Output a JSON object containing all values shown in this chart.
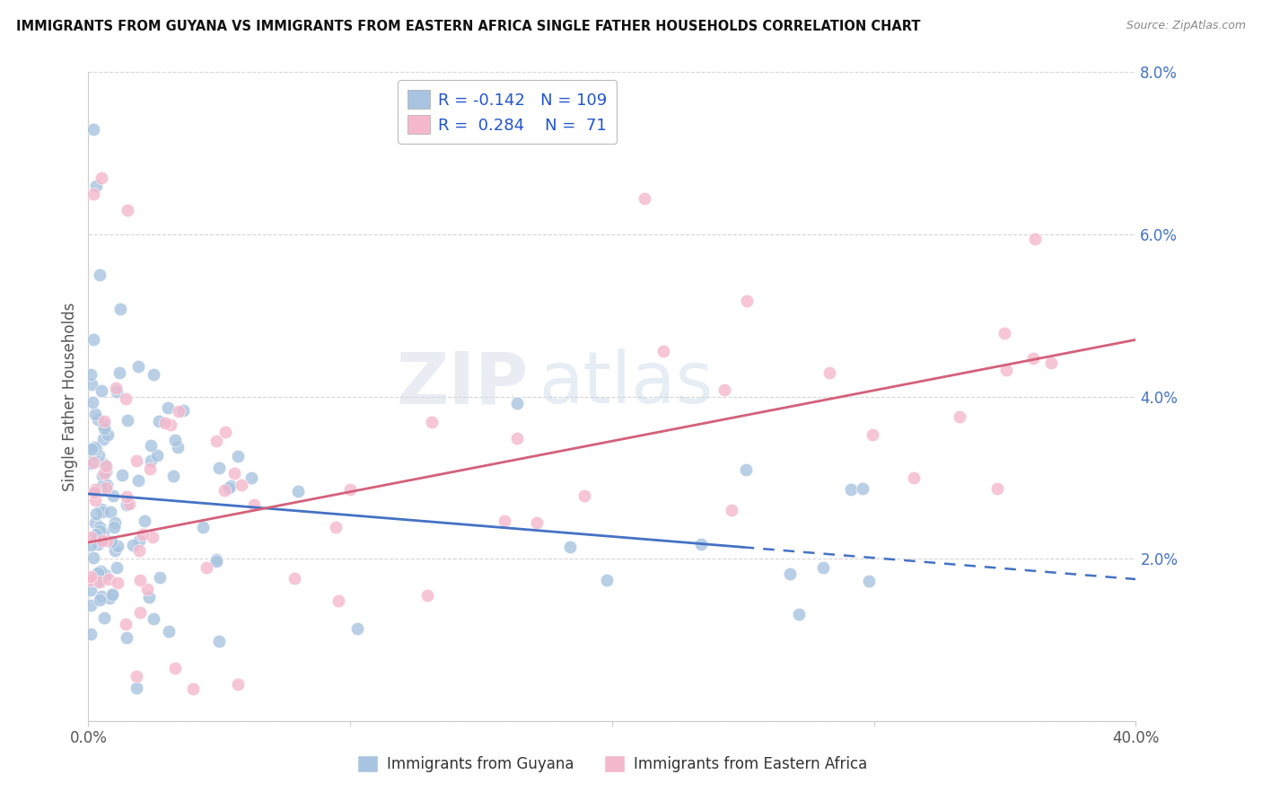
{
  "title": "IMMIGRANTS FROM GUYANA VS IMMIGRANTS FROM EASTERN AFRICA SINGLE FATHER HOUSEHOLDS CORRELATION CHART",
  "source": "Source: ZipAtlas.com",
  "ylabel_label": "Single Father Households",
  "legend_label1": "Immigrants from Guyana",
  "legend_label2": "Immigrants from Eastern Africa",
  "R1": "-0.142",
  "N1": "109",
  "R2": "0.284",
  "N2": "71",
  "color_blue": "#a8c4e0",
  "color_blue_line": "#4472c4",
  "color_pink": "#f4b8cc",
  "color_pink_line": "#d4607a",
  "watermark_zip": "ZIP",
  "watermark_atlas": "atlas",
  "xlim": [
    0.0,
    0.4
  ],
  "ylim": [
    0.0,
    0.08
  ],
  "yticks": [
    0.0,
    0.02,
    0.04,
    0.06,
    0.08
  ],
  "ytick_labels": [
    "",
    "2.0%",
    "4.0%",
    "6.0%",
    "8.0%"
  ],
  "xtick_labels": [
    "0.0%",
    "",
    "",
    "",
    "40.0%"
  ],
  "blue_line_solid_end": 0.25,
  "blue_line_start_x": 0.0,
  "blue_line_start_y": 0.028,
  "blue_line_end_y": 0.018,
  "pink_line_start_x": 0.0,
  "pink_line_start_y": 0.022,
  "pink_line_end_y": 0.047
}
